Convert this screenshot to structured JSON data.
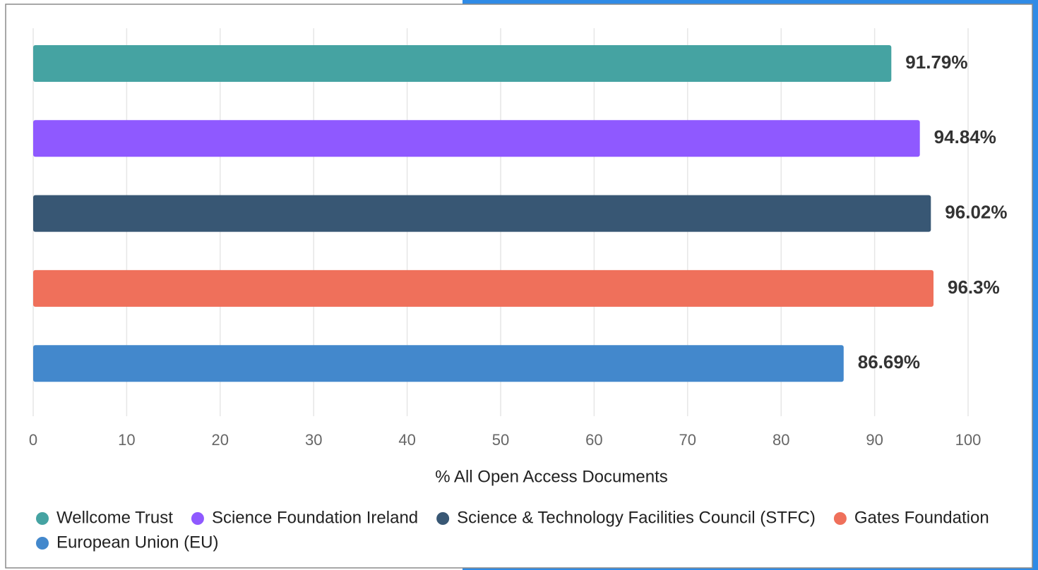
{
  "chart_data": {
    "type": "bar",
    "orientation": "horizontal",
    "xlabel": "% All Open Access Documents",
    "xlim": [
      0,
      100
    ],
    "xticks": [
      0,
      10,
      20,
      30,
      40,
      50,
      60,
      70,
      80,
      90,
      100
    ],
    "grid": true,
    "legend": "bottom-left",
    "series": [
      {
        "name": "Wellcome Trust",
        "color": "#45a3a2",
        "values": [
          91.79
        ],
        "value_labels": [
          "91.79%"
        ]
      },
      {
        "name": "Science Foundation Ireland",
        "color": "#8f59ff",
        "values": [
          94.84
        ],
        "value_labels": [
          "94.84%"
        ]
      },
      {
        "name": "Science & Technology Facilities Council (STFC)",
        "color": "#385774",
        "values": [
          96.02
        ],
        "value_labels": [
          "96.02%"
        ]
      },
      {
        "name": "Gates Foundation",
        "color": "#ef705b",
        "values": [
          96.3
        ],
        "value_labels": [
          "96.3%"
        ]
      },
      {
        "name": "European Union (EU)",
        "color": "#4388cc",
        "values": [
          86.69
        ],
        "value_labels": [
          "86.69%"
        ]
      }
    ]
  }
}
